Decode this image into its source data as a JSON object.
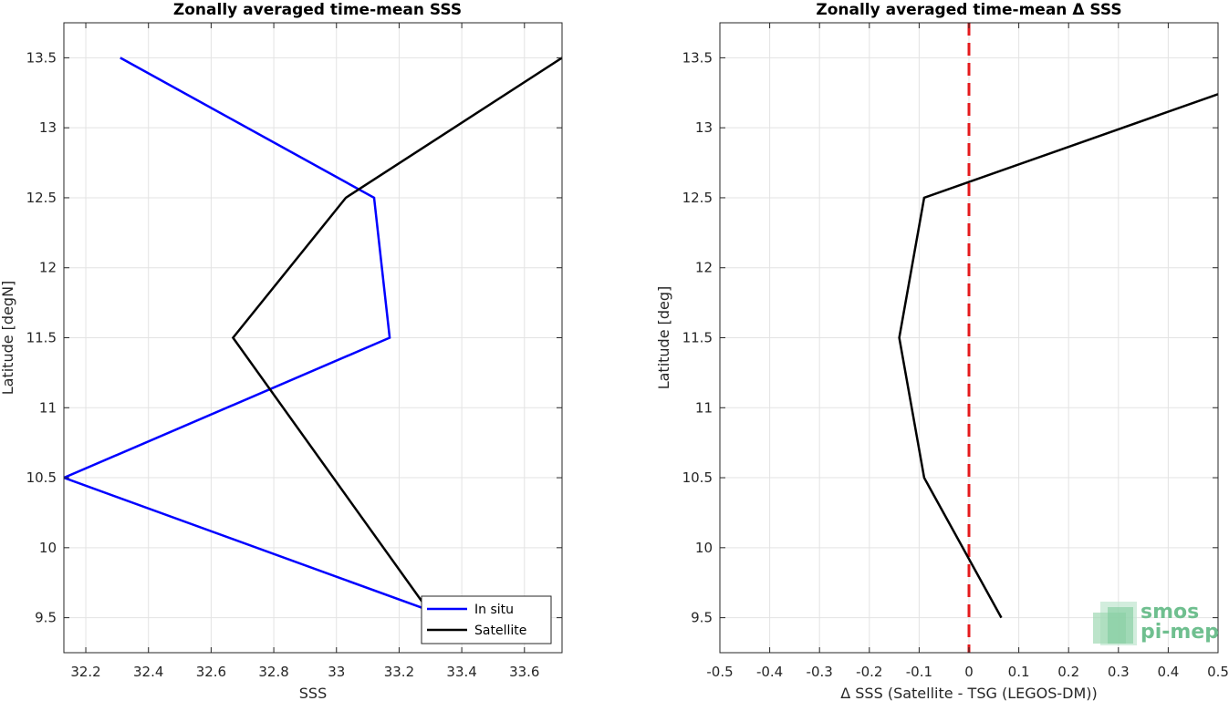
{
  "chart_data": [
    {
      "type": "line",
      "title": "Zonally averaged time-mean SSS",
      "xlabel": "SSS",
      "ylabel": "Latitude [degN]",
      "xlim": [
        32.13,
        33.72
      ],
      "ylim": [
        9.25,
        13.75
      ],
      "xticks": [
        32.2,
        32.4,
        32.6,
        32.8,
        33,
        33.2,
        33.4,
        33.6
      ],
      "xtick_labels": [
        "32.2",
        "32.4",
        "32.6",
        "32.8",
        "33",
        "33.2",
        "33.4",
        "33.6"
      ],
      "yticks": [
        9.5,
        10,
        10.5,
        11,
        11.5,
        12,
        12.5,
        13,
        13.5
      ],
      "ytick_labels": [
        "9.5",
        "10",
        "10.5",
        "11",
        "11.5",
        "12",
        "12.5",
        "13",
        "13.5"
      ],
      "grid": true,
      "legend_position": "bottom-right",
      "series": [
        {
          "name": "In situ",
          "color": "#0000ff",
          "points": [
            [
              32.31,
              13.5
            ],
            [
              33.12,
              12.5
            ],
            [
              33.17,
              11.5
            ],
            [
              32.13,
              10.5
            ],
            [
              33.36,
              9.5
            ]
          ]
        },
        {
          "name": "Satellite",
          "color": "#000000",
          "points": [
            [
              33.72,
              13.5
            ],
            [
              33.03,
              12.5
            ],
            [
              32.67,
              11.5
            ],
            [
              33.31,
              9.5
            ]
          ]
        }
      ]
    },
    {
      "type": "line",
      "title": "Zonally averaged time-mean Δ SSS",
      "xlabel": "Δ SSS (Satellite - TSG (LEGOS-DM))",
      "ylabel": "Latitude [deg]",
      "xlim": [
        -0.5,
        0.5
      ],
      "ylim": [
        9.25,
        13.75
      ],
      "xticks": [
        -0.5,
        -0.4,
        -0.3,
        -0.2,
        -0.1,
        0,
        0.1,
        0.2,
        0.3,
        0.4,
        0.5
      ],
      "xtick_labels": [
        "-0.5",
        "-0.4",
        "-0.3",
        "-0.2",
        "-0.1",
        "0",
        "0.1",
        "0.2",
        "0.3",
        "0.4",
        "0.5"
      ],
      "yticks": [
        9.5,
        10,
        10.5,
        11,
        11.5,
        12,
        12.5,
        13,
        13.5
      ],
      "ytick_labels": [
        "9.5",
        "10",
        "10.5",
        "11",
        "11.5",
        "12",
        "12.5",
        "13",
        "13.5"
      ],
      "grid": true,
      "reference_line": {
        "x": 0,
        "color": "#e41a1c",
        "style": "dashed"
      },
      "series": [
        {
          "color": "#000000",
          "points": [
            [
              0.5,
              13.24
            ],
            [
              -0.09,
              12.5
            ],
            [
              -0.14,
              11.5
            ],
            [
              -0.09,
              10.5
            ],
            [
              0.065,
              9.5
            ]
          ]
        }
      ]
    }
  ],
  "logo": {
    "line1": "smos",
    "line2": "pi-mep",
    "color": "#6fbf8f"
  }
}
